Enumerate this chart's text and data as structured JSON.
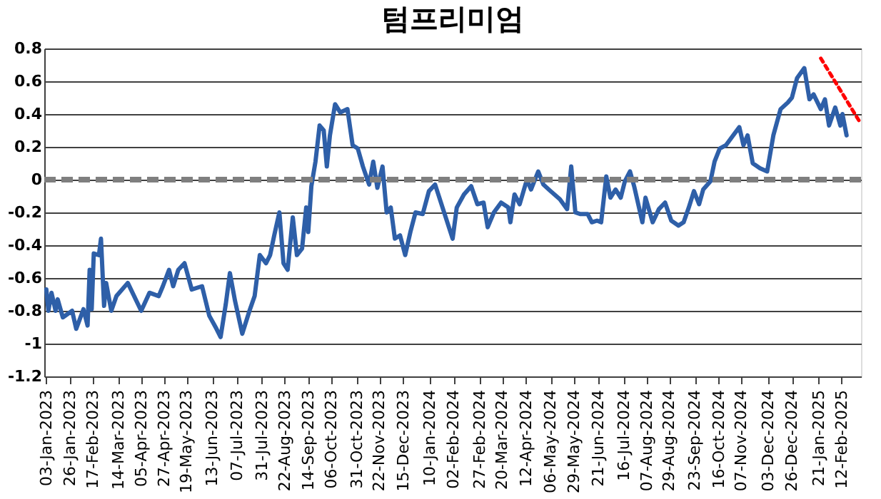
{
  "chart_data": {
    "type": "line",
    "title": "텀프리미엄",
    "x": [
      "2023-01-03",
      "2023-01-05",
      "2023-01-08",
      "2023-01-12",
      "2023-01-14",
      "2023-01-19",
      "2023-01-28",
      "2023-02-01",
      "2023-02-08",
      "2023-02-12",
      "2023-02-14",
      "2023-02-16",
      "2023-02-18",
      "2023-02-23",
      "2023-02-25",
      "2023-02-28",
      "2023-03-02",
      "2023-03-07",
      "2023-03-12",
      "2023-03-23",
      "2023-04-05",
      "2023-04-13",
      "2023-04-22",
      "2023-04-26",
      "2023-05-02",
      "2023-05-06",
      "2023-05-11",
      "2023-05-17",
      "2023-05-24",
      "2023-06-03",
      "2023-06-10",
      "2023-06-17",
      "2023-06-21",
      "2023-06-26",
      "2023-06-30",
      "2023-07-05",
      "2023-07-12",
      "2023-07-19",
      "2023-07-24",
      "2023-07-29",
      "2023-08-04",
      "2023-08-08",
      "2023-08-12",
      "2023-08-17",
      "2023-08-21",
      "2023-08-25",
      "2023-08-30",
      "2023-09-03",
      "2023-09-08",
      "2023-09-12",
      "2023-09-14",
      "2023-09-17",
      "2023-09-21",
      "2023-09-25",
      "2023-09-29",
      "2023-10-02",
      "2023-10-05",
      "2023-10-10",
      "2023-10-15",
      "2023-10-22",
      "2023-10-27",
      "2023-11-01",
      "2023-11-06",
      "2023-11-12",
      "2023-11-16",
      "2023-11-20",
      "2023-11-25",
      "2023-11-29",
      "2023-12-03",
      "2023-12-07",
      "2023-12-12",
      "2023-12-17",
      "2023-12-22",
      "2023-12-27",
      "2024-01-03",
      "2024-01-09",
      "2024-01-15",
      "2024-02-01",
      "2024-02-05",
      "2024-02-12",
      "2024-02-19",
      "2024-02-25",
      "2024-03-02",
      "2024-03-06",
      "2024-03-12",
      "2024-03-19",
      "2024-03-26",
      "2024-03-28",
      "2024-04-01",
      "2024-04-06",
      "2024-04-13",
      "2024-04-17",
      "2024-04-24",
      "2024-04-29",
      "2024-05-06",
      "2024-05-15",
      "2024-05-22",
      "2024-05-26",
      "2024-05-30",
      "2024-06-04",
      "2024-06-11",
      "2024-06-15",
      "2024-06-20",
      "2024-06-24",
      "2024-06-29",
      "2024-07-03",
      "2024-07-08",
      "2024-07-13",
      "2024-07-17",
      "2024-07-22",
      "2024-07-26",
      "2024-08-03",
      "2024-08-06",
      "2024-08-13",
      "2024-08-19",
      "2024-08-25",
      "2024-08-31",
      "2024-09-07",
      "2024-09-12",
      "2024-09-17",
      "2024-09-22",
      "2024-09-27",
      "2024-10-01",
      "2024-10-08",
      "2024-10-12",
      "2024-10-17",
      "2024-10-23",
      "2024-10-30",
      "2024-11-05",
      "2024-11-09",
      "2024-11-13",
      "2024-11-18",
      "2024-11-25",
      "2024-12-02",
      "2024-12-08",
      "2024-12-15",
      "2024-12-22",
      "2024-12-26",
      "2024-12-31",
      "2025-01-07",
      "2025-01-12",
      "2025-01-16",
      "2025-01-23",
      "2025-01-27",
      "2025-01-31",
      "2025-02-06",
      "2025-02-11",
      "2025-02-13",
      "2025-02-17"
    ],
    "series": [
      {
        "color": "#2e5fa8",
        "values": [
          -0.67,
          -0.8,
          -0.69,
          -0.8,
          -0.73,
          -0.84,
          -0.8,
          -0.91,
          -0.79,
          -0.89,
          -0.55,
          -0.79,
          -0.45,
          -0.46,
          -0.36,
          -0.77,
          -0.63,
          -0.8,
          -0.71,
          -0.63,
          -0.8,
          -0.69,
          -0.71,
          -0.65,
          -0.55,
          -0.65,
          -0.55,
          -0.51,
          -0.67,
          -0.65,
          -0.83,
          -0.91,
          -0.96,
          -0.76,
          -0.57,
          -0.74,
          -0.94,
          -0.8,
          -0.71,
          -0.46,
          -0.51,
          -0.46,
          -0.34,
          -0.2,
          -0.51,
          -0.55,
          -0.23,
          -0.46,
          -0.42,
          -0.17,
          -0.32,
          -0.04,
          0.11,
          0.33,
          0.3,
          0.08,
          0.27,
          0.46,
          0.41,
          0.43,
          0.21,
          0.19,
          0.08,
          -0.03,
          0.11,
          -0.05,
          0.08,
          -0.2,
          -0.17,
          -0.36,
          -0.34,
          -0.46,
          -0.32,
          -0.2,
          -0.21,
          -0.07,
          -0.03,
          -0.36,
          -0.17,
          -0.09,
          -0.04,
          -0.15,
          -0.14,
          -0.29,
          -0.2,
          -0.14,
          -0.17,
          -0.26,
          -0.09,
          -0.15,
          0.0,
          -0.06,
          0.05,
          -0.03,
          -0.07,
          -0.12,
          -0.18,
          0.08,
          -0.2,
          -0.21,
          -0.21,
          -0.26,
          -0.25,
          -0.26,
          0.02,
          -0.11,
          -0.06,
          -0.11,
          -0.01,
          0.05,
          -0.04,
          -0.26,
          -0.11,
          -0.26,
          -0.18,
          -0.14,
          -0.25,
          -0.28,
          -0.26,
          -0.17,
          -0.07,
          -0.15,
          -0.06,
          -0.01,
          0.11,
          0.19,
          0.21,
          0.27,
          0.32,
          0.21,
          0.27,
          0.1,
          0.07,
          0.05,
          0.27,
          0.43,
          0.47,
          0.5,
          0.62,
          0.68,
          0.49,
          0.52,
          0.43,
          0.49,
          0.33,
          0.44,
          0.33,
          0.4,
          0.27
        ]
      },
      {
        "type": "line",
        "color": "#ff0000",
        "line_style": "dotted",
        "x": [
          "2025-01-23",
          "2025-03-02"
        ],
        "values": [
          0.74,
          0.35
        ]
      }
    ],
    "xlim": [
      "2023-01-01",
      "2025-03-03"
    ],
    "xticks": [
      {
        "value": "2023-01-03",
        "label": "03-Jan-2023"
      },
      {
        "value": "2023-01-26",
        "label": "26-Jan-2023"
      },
      {
        "value": "2023-02-17",
        "label": "17-Feb-2023"
      },
      {
        "value": "2023-03-14",
        "label": "14-Mar-2023"
      },
      {
        "value": "2023-04-05",
        "label": "05-Apr-2023"
      },
      {
        "value": "2023-04-27",
        "label": "27-Apr-2023"
      },
      {
        "value": "2023-05-19",
        "label": "19-May-2023"
      },
      {
        "value": "2023-06-13",
        "label": "13-Jun-2023"
      },
      {
        "value": "2023-07-07",
        "label": "07-Jul-2023"
      },
      {
        "value": "2023-07-31",
        "label": "31-Jul-2023"
      },
      {
        "value": "2023-08-22",
        "label": "22-Aug-2023"
      },
      {
        "value": "2023-09-14",
        "label": "14-Sep-2023"
      },
      {
        "value": "2023-10-06",
        "label": "06-Oct-2023"
      },
      {
        "value": "2023-10-31",
        "label": "31-Oct-2023"
      },
      {
        "value": "2023-11-22",
        "label": "22-Nov-2023"
      },
      {
        "value": "2023-12-15",
        "label": "15-Dec-2023"
      },
      {
        "value": "2024-01-10",
        "label": "10-Jan-2024"
      },
      {
        "value": "2024-02-02",
        "label": "02-Feb-2024"
      },
      {
        "value": "2024-02-27",
        "label": "27-Feb-2024"
      },
      {
        "value": "2024-03-20",
        "label": "20-Mar-2024"
      },
      {
        "value": "2024-04-12",
        "label": "12-Apr-2024"
      },
      {
        "value": "2024-05-06",
        "label": "06-May-2024"
      },
      {
        "value": "2024-05-29",
        "label": "29-May-2024"
      },
      {
        "value": "2024-06-21",
        "label": "21-Jun-2024"
      },
      {
        "value": "2024-07-16",
        "label": "16-Jul-2024"
      },
      {
        "value": "2024-08-07",
        "label": "07-Aug-2024"
      },
      {
        "value": "2024-08-29",
        "label": "29-Aug-2024"
      },
      {
        "value": "2024-09-23",
        "label": "23-Sep-2024"
      },
      {
        "value": "2024-10-16",
        "label": "16-Oct-2024"
      },
      {
        "value": "2024-11-07",
        "label": "07-Nov-2024"
      },
      {
        "value": "2024-12-03",
        "label": "03-Dec-2024"
      },
      {
        "value": "2024-12-26",
        "label": "26-Dec-2024"
      },
      {
        "value": "2025-01-21",
        "label": "21-Jan-2025"
      },
      {
        "value": "2025-02-12",
        "label": "12-Feb-2025"
      }
    ],
    "ylim": [
      -1.2,
      0.8
    ],
    "yticks": [
      -1.2,
      -1,
      -0.8,
      -0.6,
      -0.4,
      -0.2,
      0,
      0.2,
      0.4,
      0.6,
      0.8
    ],
    "grid": "y",
    "legend": false,
    "line_style": "solid",
    "marker": "none",
    "ref_lines": [
      {
        "axis": "y",
        "value": 0,
        "color": "#7f7f7f",
        "line_style": "dashed"
      }
    ]
  }
}
